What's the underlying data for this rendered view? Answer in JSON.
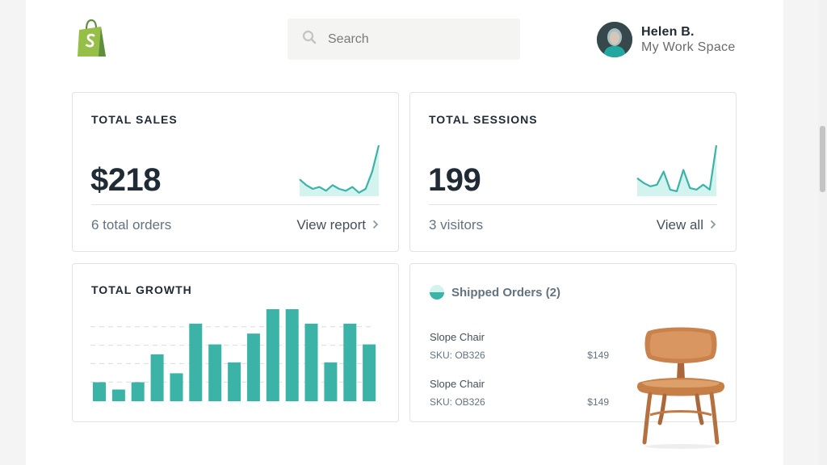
{
  "header": {
    "logo_icon": "shopping-bag-logo",
    "search_placeholder": "Search",
    "user_name": "Helen B.",
    "user_subtitle": "My Work Space"
  },
  "colors": {
    "accent": "#3bb3a7",
    "accent_light": "#d3f3ef",
    "logo_green": "#95bf47",
    "text_dark": "#212b36",
    "text_muted": "#637381"
  },
  "sales": {
    "title": "TOTAL SALES",
    "value": "$218",
    "subtitle": "6 total orders",
    "link": "View report",
    "sparkline": [
      8,
      5,
      3,
      4,
      2,
      5,
      3,
      2,
      4,
      1,
      3,
      12,
      26
    ]
  },
  "sessions": {
    "title": "TOTAL SESSIONS",
    "value": "199",
    "subtitle": "3 visitors",
    "link": "View all",
    "sparkline": [
      10,
      7,
      5,
      6,
      14,
      3,
      2,
      15,
      4,
      3,
      6,
      3,
      30
    ]
  },
  "growth": {
    "title": "TOTAL GROWTH"
  },
  "chart_data": {
    "type": "bar",
    "title": "TOTAL GROWTH",
    "values": [
      2.1,
      1.3,
      2.1,
      5.2,
      3.1,
      8.6,
      6.3,
      4.3,
      7.5,
      10.2,
      10.2,
      8.6,
      4.3,
      8.6,
      6.3
    ],
    "ylim": [
      0,
      10.2
    ],
    "grid": true,
    "color": "#3bb3a7"
  },
  "shipped": {
    "icon": "half-circle-icon",
    "title": "Shipped Orders (2)",
    "orders": [
      {
        "name": "Slope Chair",
        "sku": "SKU: OB326",
        "price": "$149"
      },
      {
        "name": "Slope Chair",
        "sku": "SKU: OB326",
        "price": "$149"
      }
    ]
  }
}
